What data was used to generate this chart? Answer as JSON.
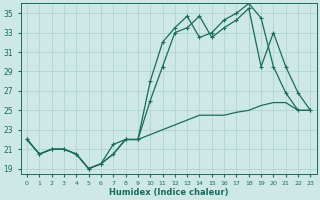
{
  "xlabel": "Humidex (Indice chaleur)",
  "bg_color": "#cde8e5",
  "grid_color": "#b0d5d0",
  "line_color": "#1a6b5e",
  "xlim": [
    -0.5,
    23.5
  ],
  "ylim": [
    18.5,
    36.0
  ],
  "yticks": [
    19,
    21,
    23,
    25,
    27,
    29,
    31,
    33,
    35
  ],
  "xticks": [
    0,
    1,
    2,
    3,
    4,
    5,
    6,
    7,
    8,
    9,
    10,
    11,
    12,
    13,
    14,
    15,
    16,
    17,
    18,
    19,
    20,
    21,
    22,
    23
  ],
  "s1_x": [
    0,
    1,
    2,
    3,
    4,
    5,
    6,
    7,
    8,
    9,
    10,
    11,
    12,
    13,
    14,
    15,
    16,
    17,
    18,
    19,
    20,
    21,
    22,
    23
  ],
  "s1_y": [
    22.0,
    20.5,
    21.0,
    21.0,
    20.5,
    19.0,
    19.5,
    20.5,
    22.0,
    22.0,
    26.0,
    29.5,
    33.0,
    33.5,
    34.7,
    32.5,
    33.5,
    34.3,
    35.5,
    29.5,
    33.0,
    29.5,
    26.8,
    25.0
  ],
  "s2_x": [
    0,
    1,
    2,
    3,
    4,
    5,
    6,
    7,
    8,
    9,
    10,
    11,
    12,
    13,
    14,
    15,
    16,
    17,
    18,
    19,
    20,
    21,
    22,
    23
  ],
  "s2_y": [
    22.0,
    20.5,
    21.0,
    21.0,
    20.5,
    19.0,
    19.5,
    21.5,
    22.0,
    22.0,
    28.0,
    32.0,
    33.5,
    34.7,
    32.5,
    33.0,
    34.3,
    35.0,
    36.0,
    34.5,
    29.5,
    26.8,
    25.0,
    25.0
  ],
  "s3_x": [
    0,
    1,
    2,
    3,
    4,
    5,
    6,
    7,
    8,
    9,
    10,
    11,
    12,
    13,
    14,
    15,
    16,
    17,
    18,
    19,
    20,
    21,
    22,
    23
  ],
  "s3_y": [
    22.0,
    20.5,
    21.0,
    21.0,
    20.5,
    19.0,
    19.5,
    20.5,
    22.0,
    22.0,
    22.5,
    23.0,
    23.5,
    24.0,
    24.5,
    24.5,
    24.5,
    24.8,
    25.0,
    25.5,
    25.8,
    25.8,
    25.0,
    25.0
  ]
}
